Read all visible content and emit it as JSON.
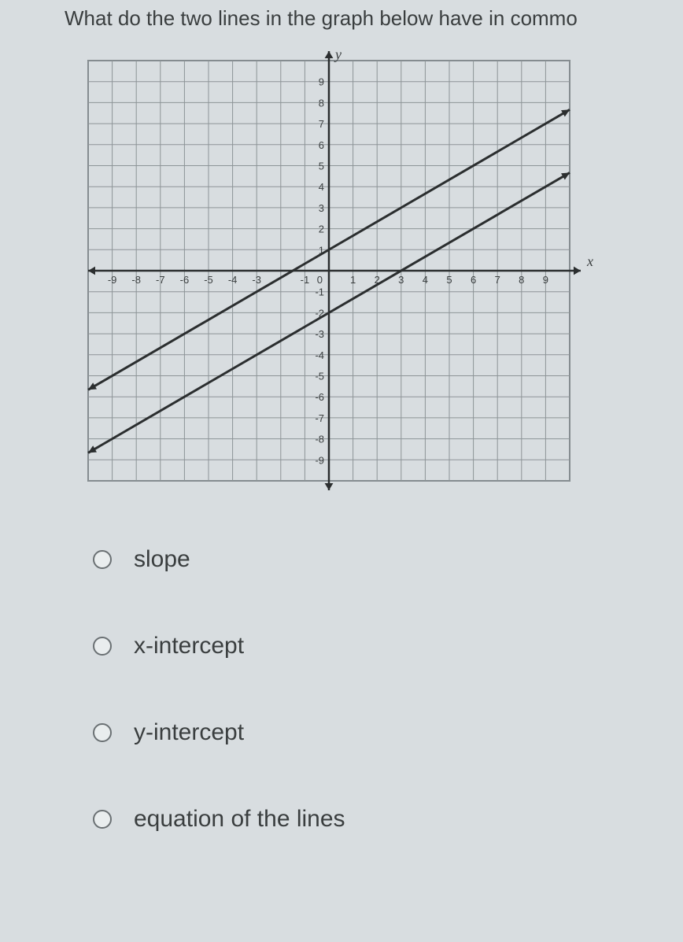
{
  "question_text": "What do the two lines in the graph below have in commo",
  "graph": {
    "type": "line",
    "x_axis_label": "x",
    "y_axis_label": "y",
    "xlim": [
      -10,
      10
    ],
    "ylim": [
      -10,
      10
    ],
    "xtick_step": 1,
    "ytick_step": 1,
    "xtick_labels": [
      "-9",
      "-8",
      "-7",
      "-6",
      "-5",
      "-4",
      "-3",
      "",
      "-1",
      "0",
      "1",
      "2",
      "3",
      "4",
      "5",
      "6",
      "7",
      "8",
      "9"
    ],
    "ytick_labels_pos": [
      "1",
      "2",
      "3",
      "4",
      "5",
      "6",
      "7",
      "8",
      "9"
    ],
    "ytick_labels_neg": [
      "-1",
      "-2",
      "-3",
      "-4",
      "-5",
      "-6",
      "-7",
      "-8",
      "-9"
    ],
    "grid_color": "#8d9497",
    "axis_color": "#2b2e2f",
    "background_color": "#d8dde0",
    "border_color": "#7d8588",
    "tick_label_color": "#3a3e3f",
    "tick_label_fontsize": 13,
    "axis_label_fontsize": 18,
    "line_color": "#2b2e2f",
    "line_width": 3,
    "arrow_size": 9,
    "lines": [
      {
        "slope": 0.6667,
        "y_intercept": 1,
        "x_start": -10,
        "x_end": 10
      },
      {
        "slope": 0.6667,
        "y_intercept": -2,
        "x_start": -10,
        "x_end": 10
      }
    ]
  },
  "options": [
    {
      "label": "slope"
    },
    {
      "label": "x-intercept"
    },
    {
      "label": "y-intercept"
    },
    {
      "label": "equation of the lines"
    }
  ]
}
